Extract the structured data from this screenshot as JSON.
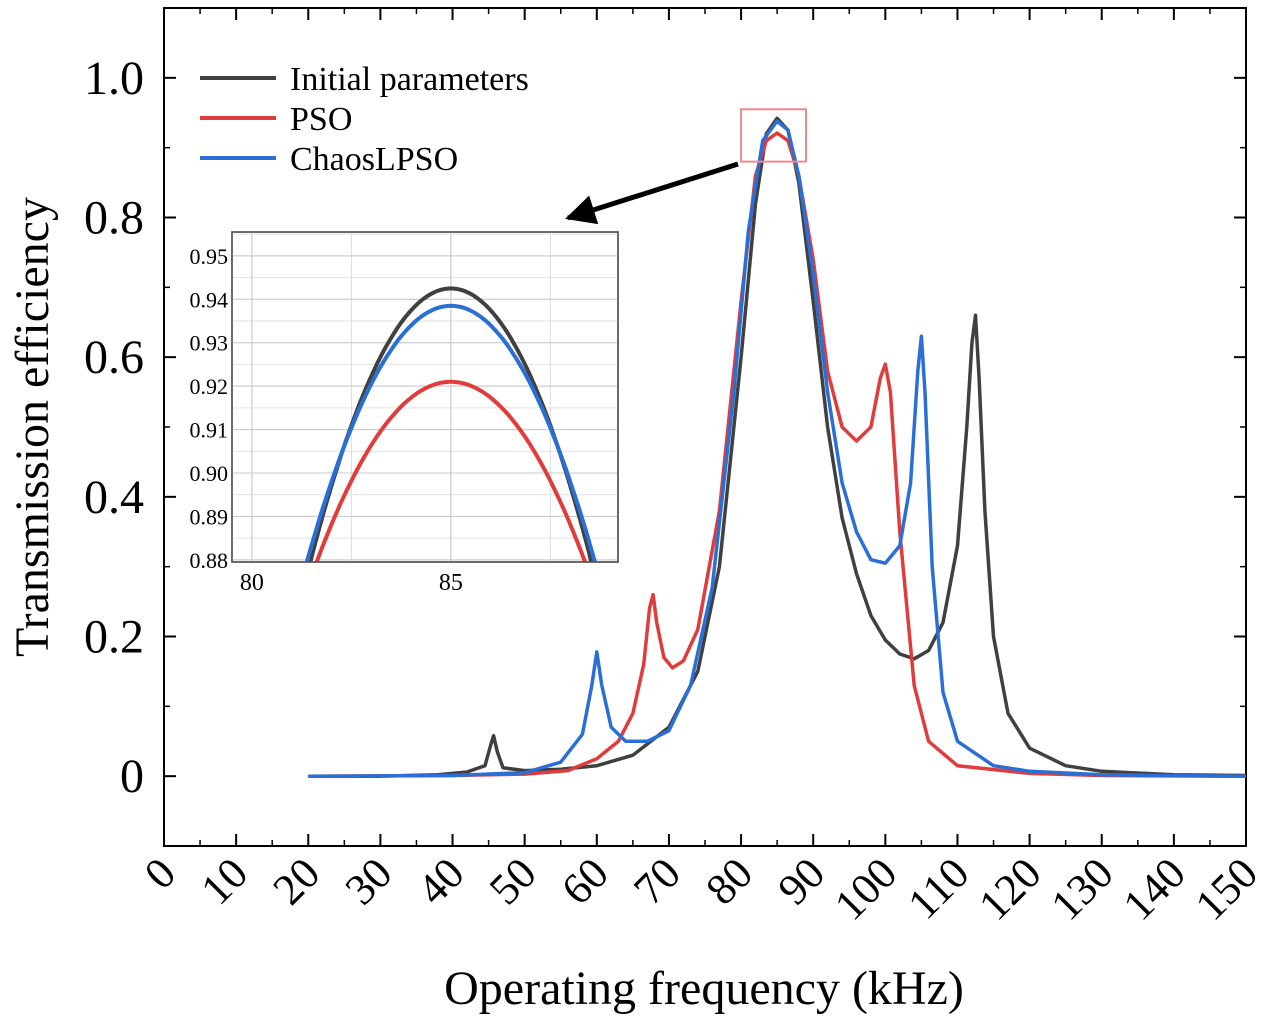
{
  "chart_data": [
    {
      "id": "main",
      "type": "line",
      "title": "",
      "xlabel": "Operating frequency (kHz)",
      "ylabel": "Transmission efficiency",
      "xlim": [
        0,
        150
      ],
      "ylim": [
        -0.1,
        1.1
      ],
      "xticks": [
        0,
        10,
        20,
        30,
        40,
        50,
        60,
        70,
        80,
        90,
        100,
        110,
        120,
        130,
        140,
        150
      ],
      "xtick_labels": [
        "0",
        "10",
        "20",
        "30",
        "40",
        "50",
        "60",
        "70",
        "80",
        "90",
        "100",
        "110",
        "120",
        "130",
        "140",
        "150"
      ],
      "yticks": [
        0,
        0.2,
        0.4,
        0.6,
        0.8,
        1.0
      ],
      "ytick_labels": [
        "0",
        "0.2",
        "0.4",
        "0.6",
        "0.8",
        "1.0"
      ],
      "grid": false,
      "legend_position": "top-left",
      "zoom_box": {
        "x": [
          80,
          89
        ],
        "y": [
          0.88,
          0.955
        ]
      },
      "series": [
        {
          "name": "Initial parameters",
          "color": "#404040",
          "points": [
            [
              20,
              0
            ],
            [
              30,
              0
            ],
            [
              38,
              0.002
            ],
            [
              42,
              0.006
            ],
            [
              44.5,
              0.015
            ],
            [
              45.3,
              0.045
            ],
            [
              45.7,
              0.058
            ],
            [
              46.2,
              0.035
            ],
            [
              47,
              0.012
            ],
            [
              50,
              0.008
            ],
            [
              55,
              0.01
            ],
            [
              60,
              0.015
            ],
            [
              65,
              0.03
            ],
            [
              70,
              0.07
            ],
            [
              74,
              0.15
            ],
            [
              77,
              0.3
            ],
            [
              80,
              0.6
            ],
            [
              82,
              0.82
            ],
            [
              83.5,
              0.92
            ],
            [
              85,
              0.942
            ],
            [
              86.5,
              0.925
            ],
            [
              88,
              0.85
            ],
            [
              90,
              0.68
            ],
            [
              92,
              0.5
            ],
            [
              94,
              0.37
            ],
            [
              96,
              0.29
            ],
            [
              98,
              0.23
            ],
            [
              100,
              0.195
            ],
            [
              102,
              0.175
            ],
            [
              104,
              0.168
            ],
            [
              106,
              0.18
            ],
            [
              108,
              0.22
            ],
            [
              110,
              0.33
            ],
            [
              111.3,
              0.5
            ],
            [
              112,
              0.62
            ],
            [
              112.5,
              0.66
            ],
            [
              113,
              0.57
            ],
            [
              113.8,
              0.38
            ],
            [
              115,
              0.2
            ],
            [
              117,
              0.09
            ],
            [
              120,
              0.04
            ],
            [
              125,
              0.015
            ],
            [
              130,
              0.007
            ],
            [
              140,
              0.002
            ],
            [
              150,
              0.001
            ]
          ]
        },
        {
          "name": "PSO",
          "color": "#e03c3c",
          "points": [
            [
              20,
              0
            ],
            [
              40,
              0.001
            ],
            [
              50,
              0.003
            ],
            [
              56,
              0.008
            ],
            [
              60,
              0.025
            ],
            [
              63,
              0.05
            ],
            [
              65,
              0.09
            ],
            [
              66.5,
              0.16
            ],
            [
              67.3,
              0.24
            ],
            [
              67.8,
              0.26
            ],
            [
              68.3,
              0.22
            ],
            [
              69.3,
              0.17
            ],
            [
              70.5,
              0.155
            ],
            [
              72,
              0.165
            ],
            [
              74,
              0.21
            ],
            [
              77,
              0.38
            ],
            [
              80,
              0.68
            ],
            [
              82,
              0.86
            ],
            [
              83.5,
              0.91
            ],
            [
              85,
              0.921
            ],
            [
              86.5,
              0.91
            ],
            [
              88,
              0.86
            ],
            [
              90,
              0.74
            ],
            [
              92,
              0.58
            ],
            [
              94,
              0.5
            ],
            [
              96,
              0.48
            ],
            [
              98,
              0.5
            ],
            [
              99.3,
              0.57
            ],
            [
              100,
              0.59
            ],
            [
              100.7,
              0.55
            ],
            [
              102,
              0.35
            ],
            [
              104,
              0.13
            ],
            [
              106,
              0.05
            ],
            [
              110,
              0.015
            ],
            [
              120,
              0.004
            ],
            [
              130,
              0.001
            ],
            [
              150,
              0
            ]
          ]
        },
        {
          "name": "ChaosLPSO",
          "color": "#2a6fd6",
          "points": [
            [
              20,
              0
            ],
            [
              40,
              0.001
            ],
            [
              50,
              0.005
            ],
            [
              55,
              0.02
            ],
            [
              58,
              0.06
            ],
            [
              59.3,
              0.13
            ],
            [
              60,
              0.178
            ],
            [
              60.7,
              0.13
            ],
            [
              62,
              0.07
            ],
            [
              64,
              0.05
            ],
            [
              67,
              0.05
            ],
            [
              70,
              0.065
            ],
            [
              73,
              0.13
            ],
            [
              76,
              0.27
            ],
            [
              79,
              0.55
            ],
            [
              81,
              0.78
            ],
            [
              83,
              0.91
            ],
            [
              85,
              0.938
            ],
            [
              86.5,
              0.925
            ],
            [
              88,
              0.86
            ],
            [
              90,
              0.72
            ],
            [
              92,
              0.55
            ],
            [
              94,
              0.42
            ],
            [
              96,
              0.35
            ],
            [
              98,
              0.31
            ],
            [
              100,
              0.305
            ],
            [
              102,
              0.33
            ],
            [
              103.5,
              0.42
            ],
            [
              104.5,
              0.58
            ],
            [
              105,
              0.63
            ],
            [
              105.5,
              0.55
            ],
            [
              106.5,
              0.3
            ],
            [
              108,
              0.12
            ],
            [
              110,
              0.05
            ],
            [
              115,
              0.015
            ],
            [
              120,
              0.007
            ],
            [
              130,
              0.002
            ],
            [
              150,
              0
            ]
          ]
        }
      ]
    },
    {
      "id": "inset",
      "type": "line",
      "title": "",
      "xlabel": "",
      "ylabel": "",
      "xlim": [
        79.5,
        89.2
      ],
      "ylim": [
        0.8795,
        0.9555
      ],
      "xticks": [
        80,
        85
      ],
      "xtick_labels": [
        "80",
        "85"
      ],
      "yticks": [
        0.88,
        0.89,
        0.9,
        0.91,
        0.92,
        0.93,
        0.94,
        0.95
      ],
      "ytick_labels": [
        "0.88",
        "0.89",
        "0.90",
        "0.91",
        "0.92",
        "0.93",
        "0.94",
        "0.95"
      ],
      "grid": true,
      "series": [
        {
          "name": "Initial parameters",
          "color": "#404040",
          "peak_x": 85,
          "peak_y": 0.9425,
          "curvature": 0.00505
        },
        {
          "name": "PSO",
          "color": "#e03c3c",
          "peak_x": 85,
          "peak_y": 0.921,
          "curvature": 0.00365
        },
        {
          "name": "ChaosLPSO",
          "color": "#2a6fd6",
          "peak_x": 85,
          "peak_y": 0.9385,
          "curvature": 0.0045
        }
      ]
    }
  ]
}
